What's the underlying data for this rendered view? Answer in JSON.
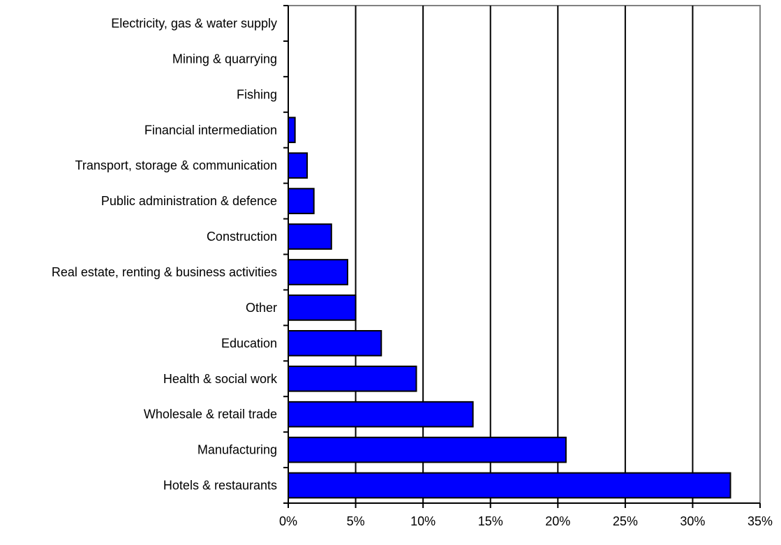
{
  "chart_data": {
    "type": "bar",
    "orientation": "horizontal",
    "categories": [
      "Electricity, gas & water supply",
      "Mining & quarrying",
      "Fishing",
      "Financial intermediation",
      "Transport, storage & communication",
      "Public administration & defence",
      "Construction",
      "Real estate, renting & business activities",
      "Other",
      "Education",
      "Health & social work",
      "Wholesale & retail trade",
      "Manufacturing",
      "Hotels & restaurants"
    ],
    "values": [
      0,
      0,
      0,
      0.5,
      1.4,
      1.9,
      3.2,
      4.4,
      5.0,
      6.9,
      9.5,
      13.7,
      20.6,
      32.8
    ],
    "xlim": [
      0,
      35
    ],
    "x_ticks": [
      0,
      5,
      10,
      15,
      20,
      25,
      30,
      35
    ],
    "x_tick_labels": [
      "0%",
      "5%",
      "10%",
      "15%",
      "20%",
      "25%",
      "30%",
      "35%"
    ],
    "title": "",
    "xlabel": "",
    "ylabel": "",
    "grid": "vertical major gridlines",
    "legend": "none",
    "bar_color": "#0000FF",
    "bar_edge_color": "#000000",
    "plot_border_color": "#808080"
  }
}
